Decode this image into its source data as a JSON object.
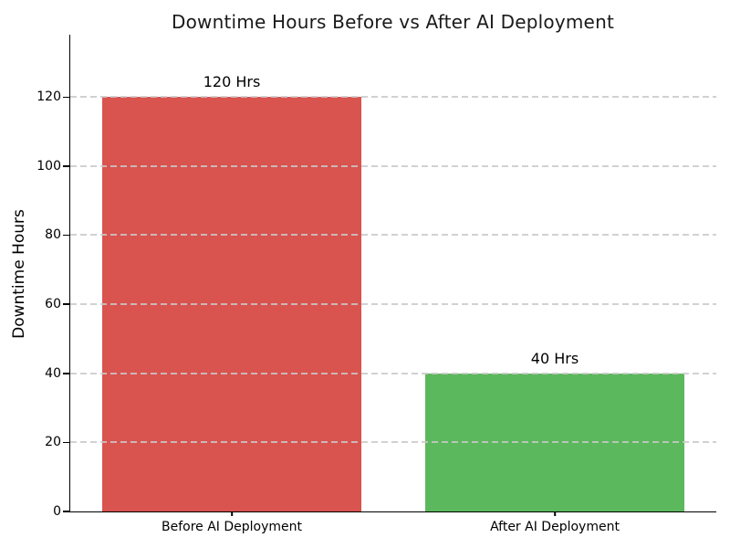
{
  "figure": {
    "background": "#ffffff",
    "text_color": "#000000",
    "title_color": "#1a1a1a"
  },
  "chart_data": {
    "type": "bar",
    "title": "Downtime Hours Before vs After AI Deployment",
    "xlabel": "",
    "ylabel": "Downtime Hours",
    "categories": [
      "Before AI Deployment",
      "After AI Deployment"
    ],
    "values": [
      120,
      40
    ],
    "bar_labels": [
      "120 Hrs",
      "40 Hrs"
    ],
    "bar_colors": [
      "#d9534f",
      "#5cb85c"
    ],
    "bar_rel_width": 0.8,
    "yticks": [
      0,
      20,
      40,
      60,
      80,
      100,
      120
    ],
    "ylim": [
      0,
      138
    ],
    "grid": {
      "axis": "y",
      "style": "dashed",
      "color": "#c9c9c9",
      "above_bars": true
    },
    "legend": null
  }
}
